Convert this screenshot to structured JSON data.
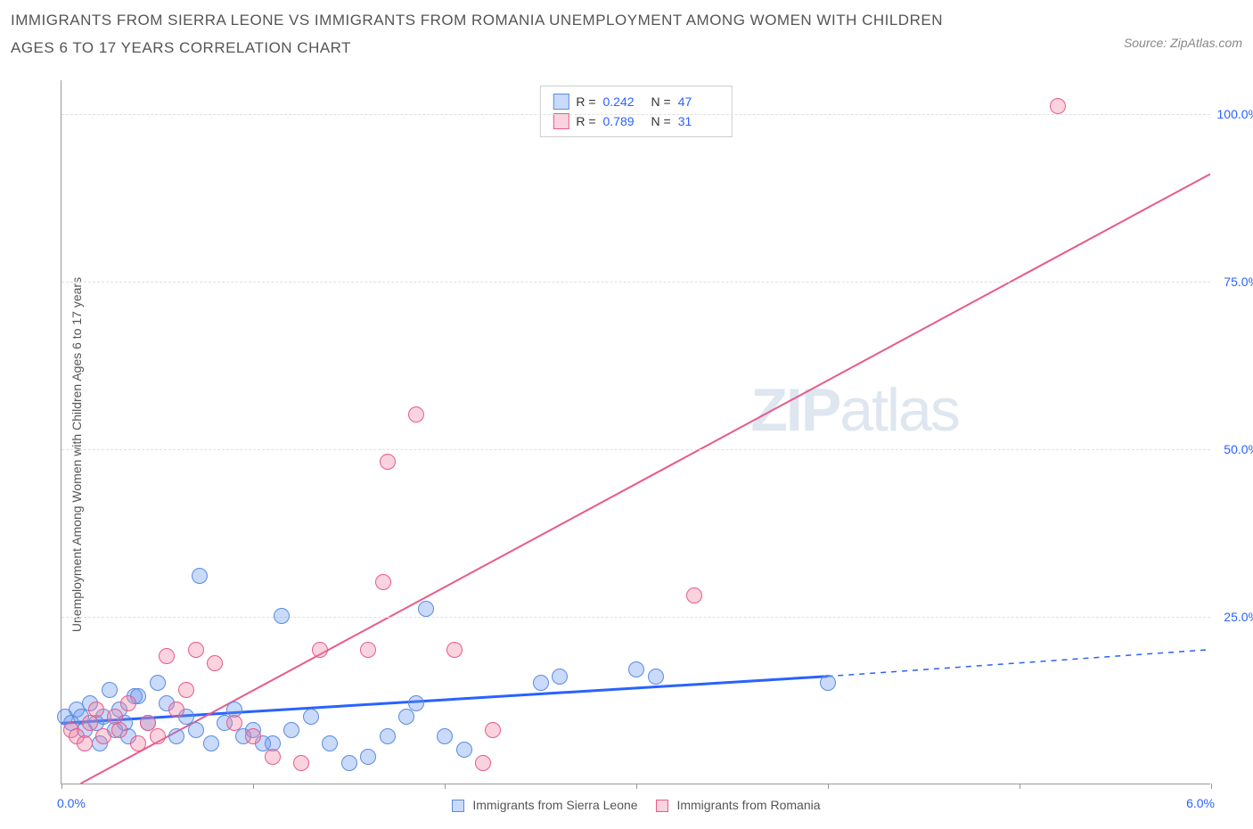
{
  "title": "IMMIGRANTS FROM SIERRA LEONE VS IMMIGRANTS FROM ROMANIA UNEMPLOYMENT AMONG WOMEN WITH CHILDREN AGES 6 TO 17 YEARS CORRELATION CHART",
  "source": "Source: ZipAtlas.com",
  "y_axis_label": "Unemployment Among Women with Children Ages 6 to 17 years",
  "watermark_prefix": "ZIP",
  "watermark_suffix": "atlas",
  "chart": {
    "type": "scatter",
    "xlim": [
      0,
      6.0
    ],
    "ylim": [
      0,
      105
    ],
    "y_ticks": [
      25.0,
      50.0,
      75.0,
      100.0
    ],
    "y_tick_labels": [
      "25.0%",
      "50.0%",
      "75.0%",
      "100.0%"
    ],
    "x_ticks": [
      0,
      1.0,
      2.0,
      3.0,
      4.0,
      5.0,
      6.0
    ],
    "x_label_min": "0.0%",
    "x_label_max": "6.0%",
    "grid_color": "#e0e0e0",
    "axis_color": "#999999",
    "y_tick_label_color": "#2962ff",
    "x_label_color": "#2962ff",
    "background_color": "#ffffff",
    "point_radius": 9,
    "series": [
      {
        "name": "Immigrants from Sierra Leone",
        "color_fill": "rgba(100,150,240,0.35)",
        "color_stroke": "#5b8be0",
        "trend_color": "#2962ff",
        "trend_width": 3,
        "R": "0.242",
        "N": "47",
        "trend": {
          "x1": 0.0,
          "y1": 9.0,
          "x2": 4.0,
          "y2": 16.0,
          "x2_dash": 6.0,
          "y2_dash": 20.0
        },
        "points": [
          [
            0.02,
            10
          ],
          [
            0.05,
            9
          ],
          [
            0.08,
            11
          ],
          [
            0.1,
            10
          ],
          [
            0.12,
            8
          ],
          [
            0.15,
            12
          ],
          [
            0.18,
            9
          ],
          [
            0.2,
            6
          ],
          [
            0.22,
            10
          ],
          [
            0.25,
            14
          ],
          [
            0.28,
            8
          ],
          [
            0.3,
            11
          ],
          [
            0.33,
            9
          ],
          [
            0.35,
            7
          ],
          [
            0.38,
            13
          ],
          [
            0.4,
            13
          ],
          [
            0.45,
            9
          ],
          [
            0.5,
            15
          ],
          [
            0.55,
            12
          ],
          [
            0.6,
            7
          ],
          [
            0.65,
            10
          ],
          [
            0.7,
            8
          ],
          [
            0.72,
            31
          ],
          [
            0.78,
            6
          ],
          [
            0.85,
            9
          ],
          [
            0.9,
            11
          ],
          [
            0.95,
            7
          ],
          [
            1.0,
            8
          ],
          [
            1.05,
            6
          ],
          [
            1.1,
            6
          ],
          [
            1.15,
            25
          ],
          [
            1.2,
            8
          ],
          [
            1.3,
            10
          ],
          [
            1.4,
            6
          ],
          [
            1.5,
            3
          ],
          [
            1.6,
            4
          ],
          [
            1.7,
            7
          ],
          [
            1.8,
            10
          ],
          [
            1.85,
            12
          ],
          [
            1.9,
            26
          ],
          [
            2.0,
            7
          ],
          [
            2.1,
            5
          ],
          [
            2.5,
            15
          ],
          [
            2.6,
            16
          ],
          [
            3.0,
            17
          ],
          [
            3.1,
            16
          ],
          [
            4.0,
            15
          ]
        ]
      },
      {
        "name": "Immigrants from Romania",
        "color_fill": "rgba(240,130,160,0.35)",
        "color_stroke": "#e85a8a",
        "trend_color": "#e85a8a",
        "trend_width": 2,
        "R": "0.789",
        "N": "31",
        "trend": {
          "x1": 0.1,
          "y1": 0.0,
          "x2": 6.0,
          "y2": 91.0
        },
        "points": [
          [
            0.05,
            8
          ],
          [
            0.08,
            7
          ],
          [
            0.12,
            6
          ],
          [
            0.15,
            9
          ],
          [
            0.18,
            11
          ],
          [
            0.22,
            7
          ],
          [
            0.28,
            10
          ],
          [
            0.3,
            8
          ],
          [
            0.35,
            12
          ],
          [
            0.4,
            6
          ],
          [
            0.45,
            9
          ],
          [
            0.5,
            7
          ],
          [
            0.55,
            19
          ],
          [
            0.6,
            11
          ],
          [
            0.65,
            14
          ],
          [
            0.7,
            20
          ],
          [
            0.8,
            18
          ],
          [
            0.9,
            9
          ],
          [
            1.0,
            7
          ],
          [
            1.1,
            4
          ],
          [
            1.25,
            3
          ],
          [
            1.35,
            20
          ],
          [
            1.6,
            20
          ],
          [
            1.68,
            30
          ],
          [
            1.7,
            48
          ],
          [
            1.85,
            55
          ],
          [
            2.05,
            20
          ],
          [
            2.2,
            3
          ],
          [
            2.25,
            8
          ],
          [
            3.3,
            28
          ],
          [
            5.2,
            101
          ]
        ]
      }
    ]
  },
  "legend_labels": {
    "R": "R =",
    "N": "N ="
  }
}
